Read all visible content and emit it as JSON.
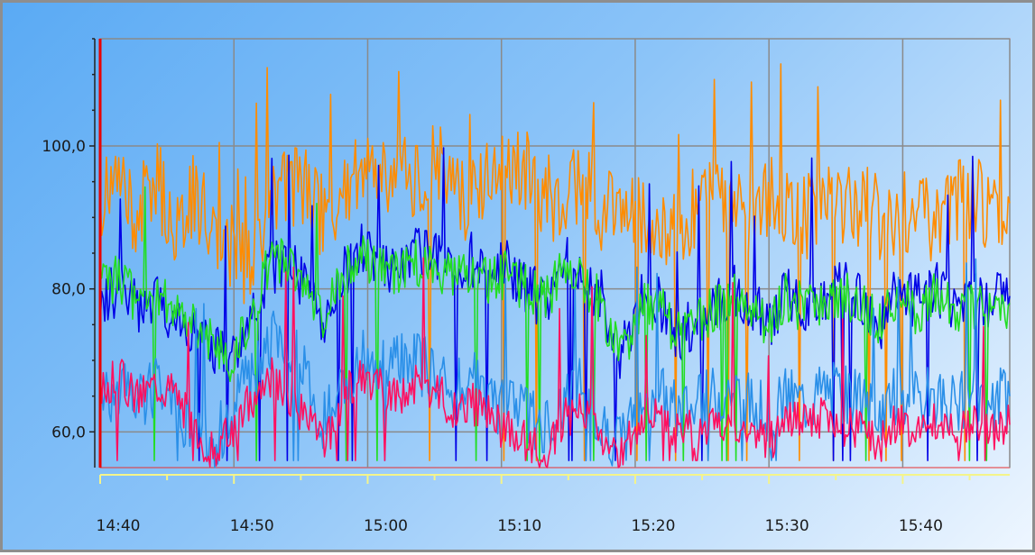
{
  "chart_data": {
    "type": "line",
    "title": "",
    "xlabel": "",
    "ylabel": "",
    "x_ticks": [
      "14:40",
      "14:50",
      "15:00",
      "15:10",
      "15:20",
      "15:30",
      "15:40"
    ],
    "x_tick_minutes": [
      0,
      10,
      20,
      30,
      40,
      50,
      60
    ],
    "x_range_minutes": [
      0,
      68
    ],
    "y_ticks": [
      "60,0",
      "80,0",
      "100,0"
    ],
    "y_tick_values": [
      60,
      80,
      100
    ],
    "ylim": [
      55,
      115
    ],
    "grid": true,
    "legend": "none",
    "series": [
      {
        "color": "#ff8c00",
        "values": [
          92,
          95,
          90,
          96,
          88,
          93,
          89,
          86,
          83,
          92,
          95,
          94,
          90,
          93,
          96,
          97,
          95,
          96,
          98,
          94,
          92,
          95,
          97,
          96,
          93,
          92,
          96,
          90,
          92,
          91,
          88,
          89,
          91,
          92,
          90,
          91,
          93,
          92,
          90,
          92,
          91,
          92,
          90,
          91,
          90,
          89,
          92,
          93,
          91,
          92
        ]
      },
      {
        "color": "#0000e6",
        "values": [
          78,
          80,
          77,
          79,
          76,
          75,
          72,
          70,
          74,
          82,
          85,
          80,
          75,
          82,
          86,
          84,
          82,
          85,
          84,
          83,
          84,
          82,
          83,
          80,
          78,
          84,
          82,
          79,
          70,
          78,
          79,
          73,
          75,
          77,
          80,
          78,
          75,
          80,
          78,
          79,
          80,
          79,
          75,
          80,
          78,
          80,
          78,
          79,
          78,
          79
        ]
      },
      {
        "color": "#22dd22",
        "values": [
          80,
          82,
          78,
          80,
          77,
          76,
          73,
          70,
          75,
          83,
          84,
          80,
          76,
          82,
          85,
          83,
          82,
          84,
          83,
          82,
          83,
          81,
          82,
          80,
          78,
          83,
          81,
          78,
          70,
          77,
          78,
          74,
          75,
          77,
          79,
          77,
          75,
          79,
          77,
          78,
          79,
          78,
          75,
          79,
          77,
          79,
          77,
          78,
          77,
          78
        ]
      },
      {
        "color": "#2a8fe8",
        "values": [
          64,
          66,
          63,
          67,
          64,
          60,
          58,
          62,
          68,
          72,
          74,
          68,
          62,
          66,
          71,
          70,
          69,
          70,
          68,
          66,
          67,
          65,
          63,
          62,
          60,
          65,
          66,
          62,
          58,
          64,
          66,
          63,
          63,
          65,
          66,
          64,
          62,
          65,
          64,
          66,
          65,
          64,
          62,
          66,
          64,
          65,
          64,
          65,
          64,
          65
        ]
      },
      {
        "color": "#ff1060",
        "values": [
          66,
          68,
          65,
          67,
          66,
          61,
          57,
          60,
          64,
          68,
          66,
          62,
          58,
          64,
          68,
          66,
          65,
          67,
          66,
          63,
          64,
          62,
          60,
          59,
          57,
          62,
          63,
          58,
          56,
          61,
          62,
          60,
          60,
          61,
          62,
          60,
          58,
          62,
          61,
          62,
          61,
          60,
          58,
          62,
          60,
          61,
          60,
          61,
          60,
          61
        ]
      }
    ]
  },
  "colors": {
    "plot_border": "#e83030",
    "grid": "#8a8a8a",
    "x_axis_line": "#f4f48a",
    "cursor_line": "#e80000"
  }
}
